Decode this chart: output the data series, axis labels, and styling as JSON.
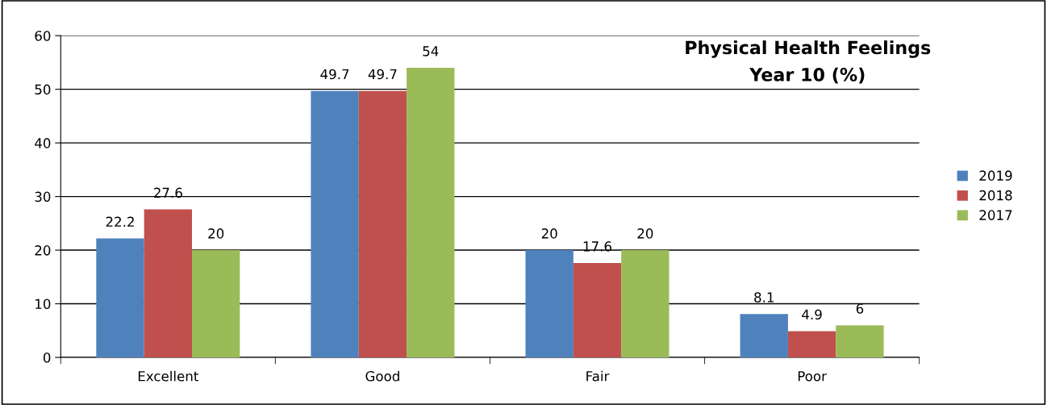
{
  "chart_data": {
    "type": "bar",
    "title": "Physical Health Feelings\nYear 10 (%)",
    "categories": [
      "Excellent",
      "Good",
      "Fair",
      "Poor"
    ],
    "series": [
      {
        "name": "2019",
        "color": "#4f81bd",
        "values": [
          22.2,
          49.7,
          20,
          8.1
        ]
      },
      {
        "name": "2018",
        "color": "#c0504d",
        "values": [
          27.6,
          49.7,
          17.6,
          4.9
        ]
      },
      {
        "name": "2017",
        "color": "#9bbb59",
        "values": [
          20,
          54,
          20,
          6
        ]
      }
    ],
    "ylim": [
      0,
      60
    ],
    "yticks": [
      0,
      10,
      20,
      30,
      40,
      50,
      60
    ],
    "grid": "y",
    "legend": "right",
    "data_labels": true
  }
}
